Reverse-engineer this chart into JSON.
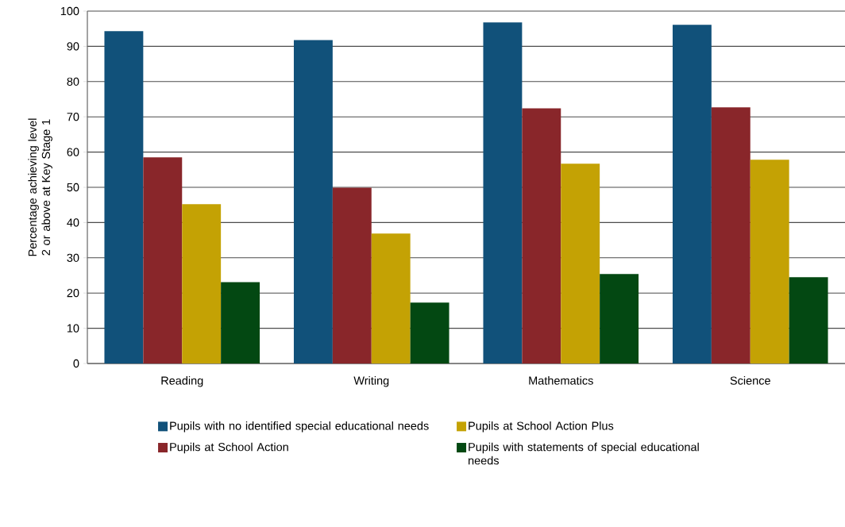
{
  "chart_data": {
    "type": "bar",
    "ylabel": "Percentage achieving level 2 or above at Key Stage 1",
    "categories": [
      "Reading",
      "Writing",
      "Mathematics",
      "Science"
    ],
    "series": [
      {
        "name": "Pupils with no identified special educational needs",
        "color": "#11517a",
        "values": [
          94.3,
          91.8,
          96.8,
          96.1
        ]
      },
      {
        "name": "Pupils at School Action",
        "color": "#89262a",
        "values": [
          58.5,
          49.9,
          72.4,
          72.7
        ]
      },
      {
        "name": "Pupils at School Action Plus",
        "color": "#c4a204",
        "values": [
          45.2,
          36.9,
          56.7,
          57.8
        ]
      },
      {
        "name": "Pupils with statements of special educational needs",
        "color": "#034812",
        "values": [
          23.1,
          17.3,
          25.4,
          24.5
        ]
      }
    ],
    "ylim": [
      0,
      100
    ],
    "yticks": [
      0,
      10,
      20,
      30,
      40,
      50,
      60,
      70,
      80,
      90,
      100
    ],
    "grid": "y",
    "legend": "bottom"
  }
}
